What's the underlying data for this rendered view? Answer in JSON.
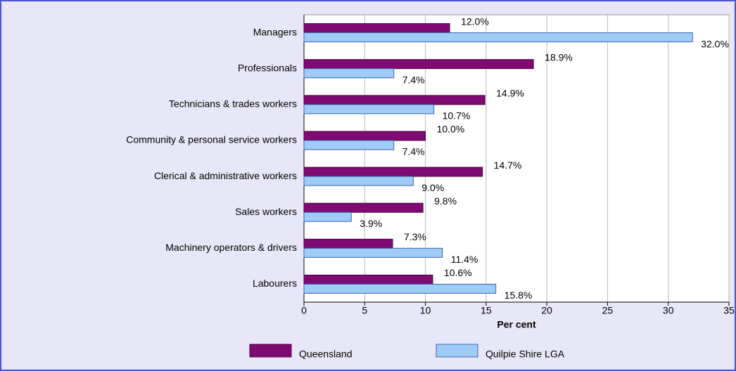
{
  "chart_data": {
    "type": "hbar",
    "x_label": "Per cent",
    "categories": [
      "Managers",
      "Professionals",
      "Technicians & trades workers",
      "Community & personal service workers",
      "Clerical & administrative workers",
      "Sales workers",
      "Machinery operators & drivers",
      "Labourers"
    ],
    "series": [
      {
        "name": "Queensland",
        "color": "#7e0a72",
        "values": [
          12.0,
          18.9,
          14.9,
          10.0,
          14.7,
          9.8,
          7.3,
          10.6
        ],
        "value_labels": [
          "12.0%",
          "18.9%",
          "14.9%",
          "10.0%",
          "14.7%",
          "9.8%",
          "7.3%",
          "10.6%"
        ]
      },
      {
        "name": "Quilpie Shire LGA",
        "color": "#9fcbf7",
        "values": [
          32.0,
          7.4,
          10.7,
          7.4,
          9.0,
          3.9,
          11.4,
          15.8
        ],
        "value_labels": [
          "32.0%",
          "7.4%",
          "10.7%",
          "7.4%",
          "9.0%",
          "3.9%",
          "11.4%",
          "15.8%"
        ]
      }
    ],
    "xlim": [
      0,
      35
    ],
    "xticks": [
      0,
      5,
      10,
      15,
      20,
      25,
      30,
      35
    ],
    "grid": true,
    "legend": "bottom"
  }
}
